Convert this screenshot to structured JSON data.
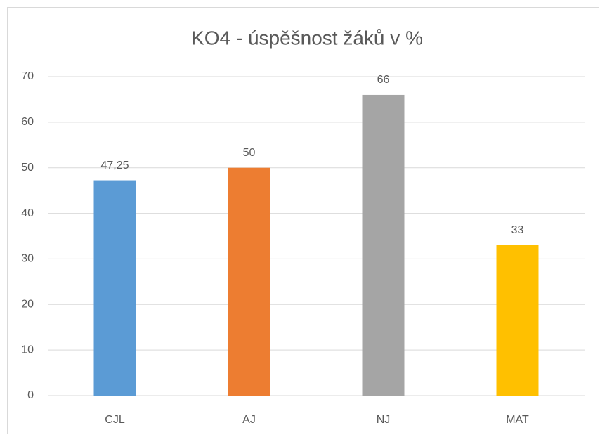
{
  "chart_data": {
    "type": "bar",
    "title": "KO4 - úspěšnost žáků v %",
    "categories": [
      "CJL",
      "AJ",
      "NJ",
      "MAT"
    ],
    "values": [
      47.25,
      50,
      66,
      33
    ],
    "value_labels": [
      "47,25",
      "50",
      "66",
      "33"
    ],
    "colors": [
      "#5b9bd5",
      "#ed7d31",
      "#a5a5a5",
      "#ffc000"
    ],
    "ylim": [
      0,
      70
    ],
    "yticks": [
      0,
      10,
      20,
      30,
      40,
      50,
      60,
      70
    ],
    "grid": true
  }
}
